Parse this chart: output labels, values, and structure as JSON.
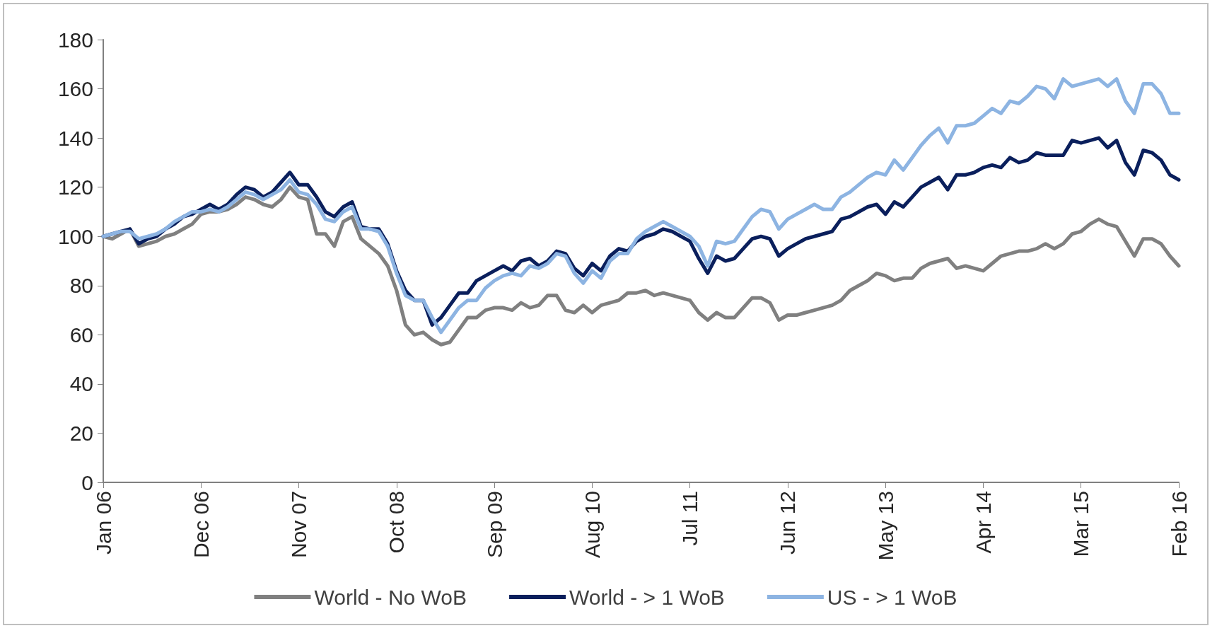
{
  "chart_data": {
    "type": "line",
    "categories": [
      "Jan 06",
      null,
      null,
      null,
      null,
      null,
      null,
      null,
      null,
      null,
      null,
      "Dec 06",
      null,
      null,
      null,
      null,
      null,
      null,
      null,
      null,
      null,
      null,
      "Nov 07",
      null,
      null,
      null,
      null,
      null,
      null,
      null,
      null,
      null,
      null,
      "Oct 08",
      null,
      null,
      null,
      null,
      null,
      null,
      null,
      null,
      null,
      null,
      "Sep 09",
      null,
      null,
      null,
      null,
      null,
      null,
      null,
      null,
      null,
      null,
      "Aug 10",
      null,
      null,
      null,
      null,
      null,
      null,
      null,
      null,
      null,
      null,
      "Jul 11",
      null,
      null,
      null,
      null,
      null,
      null,
      null,
      null,
      null,
      null,
      "Jun 12",
      null,
      null,
      null,
      null,
      null,
      null,
      null,
      null,
      null,
      null,
      "May 13",
      null,
      null,
      null,
      null,
      null,
      null,
      null,
      null,
      null,
      null,
      "Apr 14",
      null,
      null,
      null,
      null,
      null,
      null,
      null,
      null,
      null,
      null,
      "Mar 15",
      null,
      null,
      null,
      null,
      null,
      null,
      null,
      null,
      null,
      null,
      "Feb 16"
    ],
    "series": [
      {
        "name": "World - No WoB",
        "color": "#808080",
        "values": [
          100,
          99,
          101,
          103,
          96,
          97,
          98,
          100,
          101,
          103,
          105,
          109,
          110,
          110,
          111,
          113,
          116,
          115,
          113,
          112,
          115,
          120,
          116,
          115,
          101,
          101,
          96,
          106,
          108,
          99,
          96,
          93,
          88,
          78,
          64,
          60,
          61,
          58,
          56,
          57,
          62,
          67,
          67,
          70,
          71,
          71,
          70,
          73,
          71,
          72,
          76,
          76,
          70,
          69,
          72,
          69,
          72,
          73,
          74,
          77,
          77,
          78,
          76,
          77,
          76,
          75,
          74,
          69,
          66,
          69,
          67,
          67,
          71,
          75,
          75,
          73,
          66,
          68,
          68,
          69,
          70,
          71,
          72,
          74,
          78,
          80,
          82,
          85,
          84,
          82,
          83,
          83,
          87,
          89,
          90,
          91,
          87,
          88,
          87,
          86,
          89,
          92,
          93,
          94,
          94,
          95,
          97,
          95,
          97,
          101,
          102,
          105,
          107,
          105,
          104,
          98,
          92,
          99,
          99,
          97,
          92,
          88
        ]
      },
      {
        "name": "World - > 1 WoB",
        "color": "#0a1f5c",
        "values": [
          100,
          101,
          102,
          103,
          97,
          99,
          100,
          103,
          105,
          108,
          109,
          111,
          113,
          111,
          113,
          117,
          120,
          119,
          116,
          118,
          122,
          126,
          121,
          121,
          116,
          110,
          108,
          112,
          114,
          104,
          103,
          103,
          97,
          86,
          78,
          74,
          74,
          64,
          67,
          72,
          77,
          77,
          82,
          84,
          86,
          88,
          86,
          90,
          91,
          88,
          90,
          94,
          93,
          87,
          84,
          89,
          86,
          92,
          95,
          94,
          98,
          100,
          101,
          103,
          102,
          100,
          98,
          91,
          85,
          92,
          90,
          91,
          95,
          99,
          100,
          99,
          92,
          95,
          97,
          99,
          100,
          101,
          102,
          107,
          108,
          110,
          112,
          113,
          109,
          114,
          112,
          116,
          120,
          122,
          124,
          119,
          125,
          125,
          126,
          128,
          129,
          128,
          132,
          130,
          131,
          134,
          133,
          133,
          133,
          139,
          138,
          139,
          140,
          136,
          139,
          130,
          125,
          135,
          134,
          131,
          125,
          123
        ]
      },
      {
        "name": "US - > 1 WoB",
        "color": "#8db4e2",
        "values": [
          100,
          101,
          102,
          102,
          99,
          100,
          101,
          103,
          106,
          108,
          110,
          110,
          111,
          110,
          112,
          115,
          118,
          117,
          115,
          117,
          119,
          123,
          118,
          117,
          113,
          107,
          106,
          110,
          112,
          103,
          103,
          102,
          96,
          85,
          76,
          74,
          74,
          67,
          61,
          66,
          71,
          74,
          74,
          79,
          82,
          84,
          85,
          84,
          88,
          87,
          89,
          93,
          92,
          85,
          81,
          86,
          83,
          90,
          93,
          93,
          99,
          102,
          104,
          106,
          104,
          102,
          100,
          96,
          88,
          98,
          97,
          98,
          103,
          108,
          111,
          110,
          103,
          107,
          109,
          111,
          113,
          111,
          111,
          116,
          118,
          121,
          124,
          126,
          125,
          131,
          127,
          132,
          137,
          141,
          144,
          138,
          145,
          145,
          146,
          149,
          152,
          150,
          155,
          154,
          157,
          161,
          160,
          156,
          164,
          161,
          162,
          163,
          164,
          161,
          164,
          155,
          150,
          162,
          162,
          158,
          150,
          150
        ]
      }
    ],
    "ylim": [
      0,
      180
    ],
    "yticks": [
      0,
      20,
      40,
      60,
      80,
      100,
      120,
      140,
      160,
      180
    ],
    "grid": false,
    "legend": "bottom",
    "marker": "none",
    "line_style": "solid"
  }
}
